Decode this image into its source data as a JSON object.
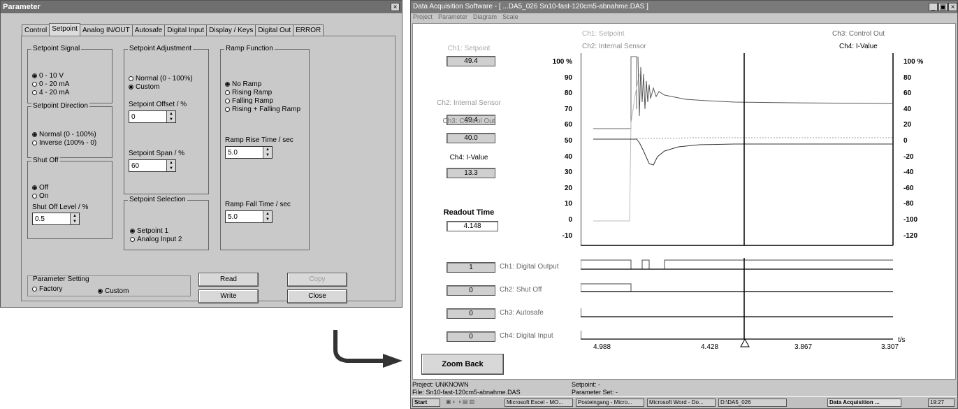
{
  "param_dialog": {
    "title": "Parameter",
    "close": "×",
    "tabs": [
      "Control",
      "Setpoint",
      "Analog IN/OUT",
      "Autosafe",
      "Digital Input",
      "Display / Keys",
      "Digital Out",
      "ERROR"
    ],
    "active_tab": "Setpoint",
    "setpoint_signal": {
      "label": "Setpoint Signal",
      "options": [
        "0 - 10 V",
        "0 - 20 mA",
        "4 - 20 mA"
      ],
      "selected": 0
    },
    "setpoint_direction": {
      "label": "Setpoint Direction",
      "options": [
        "Normal (0 - 100%)",
        "Inverse (100% - 0)"
      ],
      "selected": 0
    },
    "shut_off": {
      "label": "Shut Off",
      "options": [
        "Off",
        "On"
      ],
      "selected": 0,
      "level_label": "Shut Off Level / %",
      "level_value": "0.5"
    },
    "setpoint_adjustment": {
      "label": "Setpoint Adjustment",
      "options": [
        "Normal (0 - 100%)",
        "Custom"
      ],
      "selected": 1,
      "offset_label": "Setpoint Offset / %",
      "offset_value": "0",
      "span_label": "Setpoint Span / %",
      "span_value": "60"
    },
    "setpoint_selection": {
      "label": "Setpoint Selection",
      "options": [
        "Setpoint 1",
        "Analog Input 2"
      ],
      "selected": 0
    },
    "ramp_function": {
      "label": "Ramp Function",
      "options": [
        "No Ramp",
        "Rising Ramp",
        "Falling Ramp",
        "Rising + Falling Ramp"
      ],
      "selected": 0,
      "rise_label": "Ramp Rise Time / sec",
      "rise_value": "5.0",
      "fall_label": "Ramp Fall Time / sec",
      "fall_value": "5.0"
    },
    "parameter_setting": {
      "label": "Parameter Setting",
      "options": [
        "Factory",
        "Custom"
      ],
      "selected": 1
    },
    "buttons": {
      "read": "Read",
      "copy": "Copy",
      "write": "Write",
      "close": "Close"
    }
  },
  "das_window": {
    "title": "Data Acquisition Software - [ ...DA5_026 Sn10-fast-120cm5-abnahme.DAS ]",
    "win_controls": [
      "_",
      "▣",
      "×"
    ],
    "menu": [
      "Project",
      "Parameter",
      "Diagram",
      "Scale"
    ],
    "channels": [
      {
        "label": "Ch1: Setpoint",
        "value": "49.4"
      },
      {
        "label": "Ch2: Internal Sensor",
        "value": "49.4"
      },
      {
        "label": "Ch3: Control Out",
        "value": "40.0"
      },
      {
        "label": "Ch4: I-Value",
        "value": "13.3"
      }
    ],
    "readout_label": "Readout Time",
    "readout_value": "4.148",
    "legend": [
      "Ch1: Setpoint",
      "Ch2: Internal Sensor",
      "Ch3: Control Out",
      "Ch4: I-Value"
    ],
    "left_axis_ticks": [
      "100 %",
      "90",
      "80",
      "70",
      "60",
      "50",
      "40",
      "30",
      "20",
      "10",
      "0",
      "-10"
    ],
    "right_axis_ticks": [
      "100 %",
      "80",
      "60",
      "40",
      "20",
      "0",
      "-20",
      "-40",
      "-60",
      "-80",
      "-100",
      "-120"
    ],
    "digital": [
      {
        "label": "Ch1: Digital Output",
        "value": "1"
      },
      {
        "label": "Ch2: Shut Off",
        "value": "0"
      },
      {
        "label": "Ch3: Autosafe",
        "value": "0"
      },
      {
        "label": "Ch4: Digital Input",
        "value": "0"
      }
    ],
    "time_ticks": [
      "4.988",
      "4.428",
      "3.867",
      "3.307"
    ],
    "time_unit": "t/s",
    "zoom_back": "Zoom Back",
    "status": {
      "project": "Project: UNKNOWN",
      "file": "File: Sn10-fast-120cm5-abnahme.DAS",
      "setpoint": "Setpoint: -",
      "parameter_set": "Parameter Set: -"
    },
    "taskbar": {
      "start": "Start",
      "items": [
        "Microsoft Excel - MO...",
        "Posteingang - Micro...",
        "Microsoft Word - Do...",
        "D:\\DA5_026",
        "Data Acquisition ..."
      ],
      "clock": "19:27"
    }
  },
  "colors": {
    "dialog_bg": "#c9c9c9",
    "title_bar": "#6f6f6f",
    "plot_line": "#555555"
  }
}
